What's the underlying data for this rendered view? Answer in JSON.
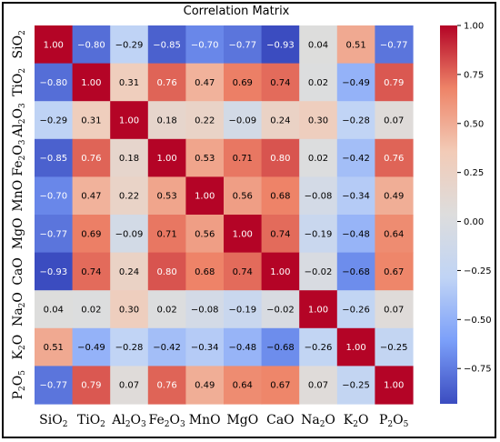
{
  "chart_data": {
    "type": "heatmap",
    "title": "Correlation Matrix",
    "rows": [
      {
        "base": "SiO",
        "sub": "2",
        "base2": "",
        "sub2": ""
      },
      {
        "base": "TiO",
        "sub": "2",
        "base2": "",
        "sub2": ""
      },
      {
        "base": "Al",
        "sub": "2",
        "base2": "O",
        "sub2": "3"
      },
      {
        "base": "Fe",
        "sub": "2",
        "base2": "O",
        "sub2": "3"
      },
      {
        "base": "MnO",
        "sub": "",
        "base2": "",
        "sub2": ""
      },
      {
        "base": "MgO",
        "sub": "",
        "base2": "",
        "sub2": ""
      },
      {
        "base": "CaO",
        "sub": "",
        "base2": "",
        "sub2": ""
      },
      {
        "base": "Na",
        "sub": "2",
        "base2": "O",
        "sub2": ""
      },
      {
        "base": "K",
        "sub": "2",
        "base2": "O",
        "sub2": ""
      },
      {
        "base": "P",
        "sub": "2",
        "base2": "O",
        "sub2": "5"
      }
    ],
    "values": [
      [
        1.0,
        -0.8,
        -0.29,
        -0.85,
        -0.7,
        -0.77,
        -0.93,
        0.04,
        0.51,
        -0.77
      ],
      [
        -0.8,
        1.0,
        0.31,
        0.76,
        0.47,
        0.69,
        0.74,
        0.02,
        -0.49,
        0.79
      ],
      [
        -0.29,
        0.31,
        1.0,
        0.18,
        0.22,
        -0.09,
        0.24,
        0.3,
        -0.28,
        0.07
      ],
      [
        -0.85,
        0.76,
        0.18,
        1.0,
        0.53,
        0.71,
        0.8,
        0.02,
        -0.42,
        0.76
      ],
      [
        -0.7,
        0.47,
        0.22,
        0.53,
        1.0,
        0.56,
        0.68,
        -0.08,
        -0.34,
        0.49
      ],
      [
        -0.77,
        0.69,
        -0.09,
        0.71,
        0.56,
        1.0,
        0.74,
        -0.19,
        -0.48,
        0.64
      ],
      [
        -0.93,
        0.74,
        0.24,
        0.8,
        0.68,
        0.74,
        1.0,
        -0.02,
        -0.68,
        0.67
      ],
      [
        0.04,
        0.02,
        0.3,
        0.02,
        -0.08,
        -0.19,
        -0.02,
        1.0,
        -0.26,
        0.07
      ],
      [
        0.51,
        -0.49,
        -0.28,
        -0.42,
        -0.34,
        -0.48,
        -0.68,
        -0.26,
        1.0,
        -0.25
      ],
      [
        -0.77,
        0.79,
        0.07,
        0.76,
        0.49,
        0.64,
        0.67,
        0.07,
        -0.25,
        1.0
      ]
    ],
    "value_labels": [
      [
        "1.00",
        "−0.80",
        "−0.29",
        "−0.85",
        "−0.70",
        "−0.77",
        "−0.93",
        "0.04",
        "0.51",
        "−0.77"
      ],
      [
        "−0.80",
        "1.00",
        "0.31",
        "0.76",
        "0.47",
        "0.69",
        "0.74",
        "0.02",
        "−0.49",
        "0.79"
      ],
      [
        "−0.29",
        "0.31",
        "1.00",
        "0.18",
        "0.22",
        "−0.09",
        "0.24",
        "0.30",
        "−0.28",
        "0.07"
      ],
      [
        "−0.85",
        "0.76",
        "0.18",
        "1.00",
        "0.53",
        "0.71",
        "0.80",
        "0.02",
        "−0.42",
        "0.76"
      ],
      [
        "−0.70",
        "0.47",
        "0.22",
        "0.53",
        "1.00",
        "0.56",
        "0.68",
        "−0.08",
        "−0.34",
        "0.49"
      ],
      [
        "−0.77",
        "0.69",
        "−0.09",
        "0.71",
        "0.56",
        "1.00",
        "0.74",
        "−0.19",
        "−0.48",
        "0.64"
      ],
      [
        "−0.93",
        "0.74",
        "0.24",
        "0.80",
        "0.68",
        "0.74",
        "1.00",
        "−0.02",
        "−0.68",
        "0.67"
      ],
      [
        "0.04",
        "0.02",
        "0.30",
        "0.02",
        "−0.08",
        "−0.19",
        "−0.02",
        "1.00",
        "−0.26",
        "0.07"
      ],
      [
        "0.51",
        "−0.49",
        "−0.28",
        "−0.42",
        "−0.34",
        "−0.48",
        "−0.68",
        "−0.26",
        "1.00",
        "−0.25"
      ],
      [
        "−0.77",
        "0.79",
        "0.07",
        "0.76",
        "0.49",
        "0.64",
        "0.67",
        "0.07",
        "−0.25",
        "1.00"
      ]
    ],
    "colorbar": {
      "range": [
        -0.93,
        1.0
      ],
      "ticks": [
        1.0,
        0.75,
        0.5,
        0.25,
        0.0,
        -0.25,
        -0.5,
        -0.75
      ],
      "tick_labels": [
        "1.00",
        "0.75",
        "0.50",
        "0.25",
        "0.00",
        "−0.25",
        "−0.50",
        "−0.75"
      ],
      "colormap": "coolwarm",
      "stops": [
        "#3b4cc0",
        "#7b9ff9",
        "#c0d4f5",
        "#dddddd",
        "#f2cbb7",
        "#ee8468",
        "#b40426"
      ]
    }
  }
}
